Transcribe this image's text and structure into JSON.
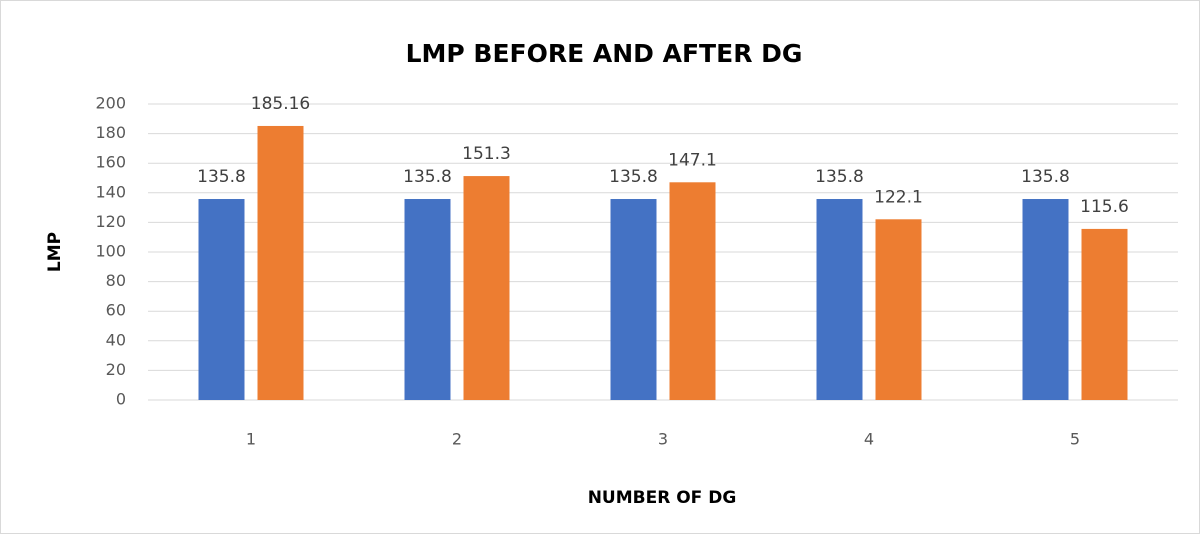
{
  "chart_data": {
    "type": "bar",
    "title": "LMP BEFORE AND AFTER DG",
    "x_label": "NUMBER OF DG",
    "y_label": "LMP",
    "categories": [
      "1",
      "2",
      "3",
      "4",
      "5"
    ],
    "series": [
      {
        "color": "#4472c4",
        "values": [
          135.8,
          135.8,
          135.8,
          135.8,
          135.8
        ]
      },
      {
        "color": "#ed7d31",
        "values": [
          185.16,
          151.3,
          147.1,
          122.1,
          115.6
        ]
      }
    ],
    "ylim": [
      0,
      200
    ],
    "yticks": [
      0,
      20,
      40,
      60,
      80,
      100,
      120,
      140,
      160,
      180,
      200
    ],
    "grid": true
  }
}
